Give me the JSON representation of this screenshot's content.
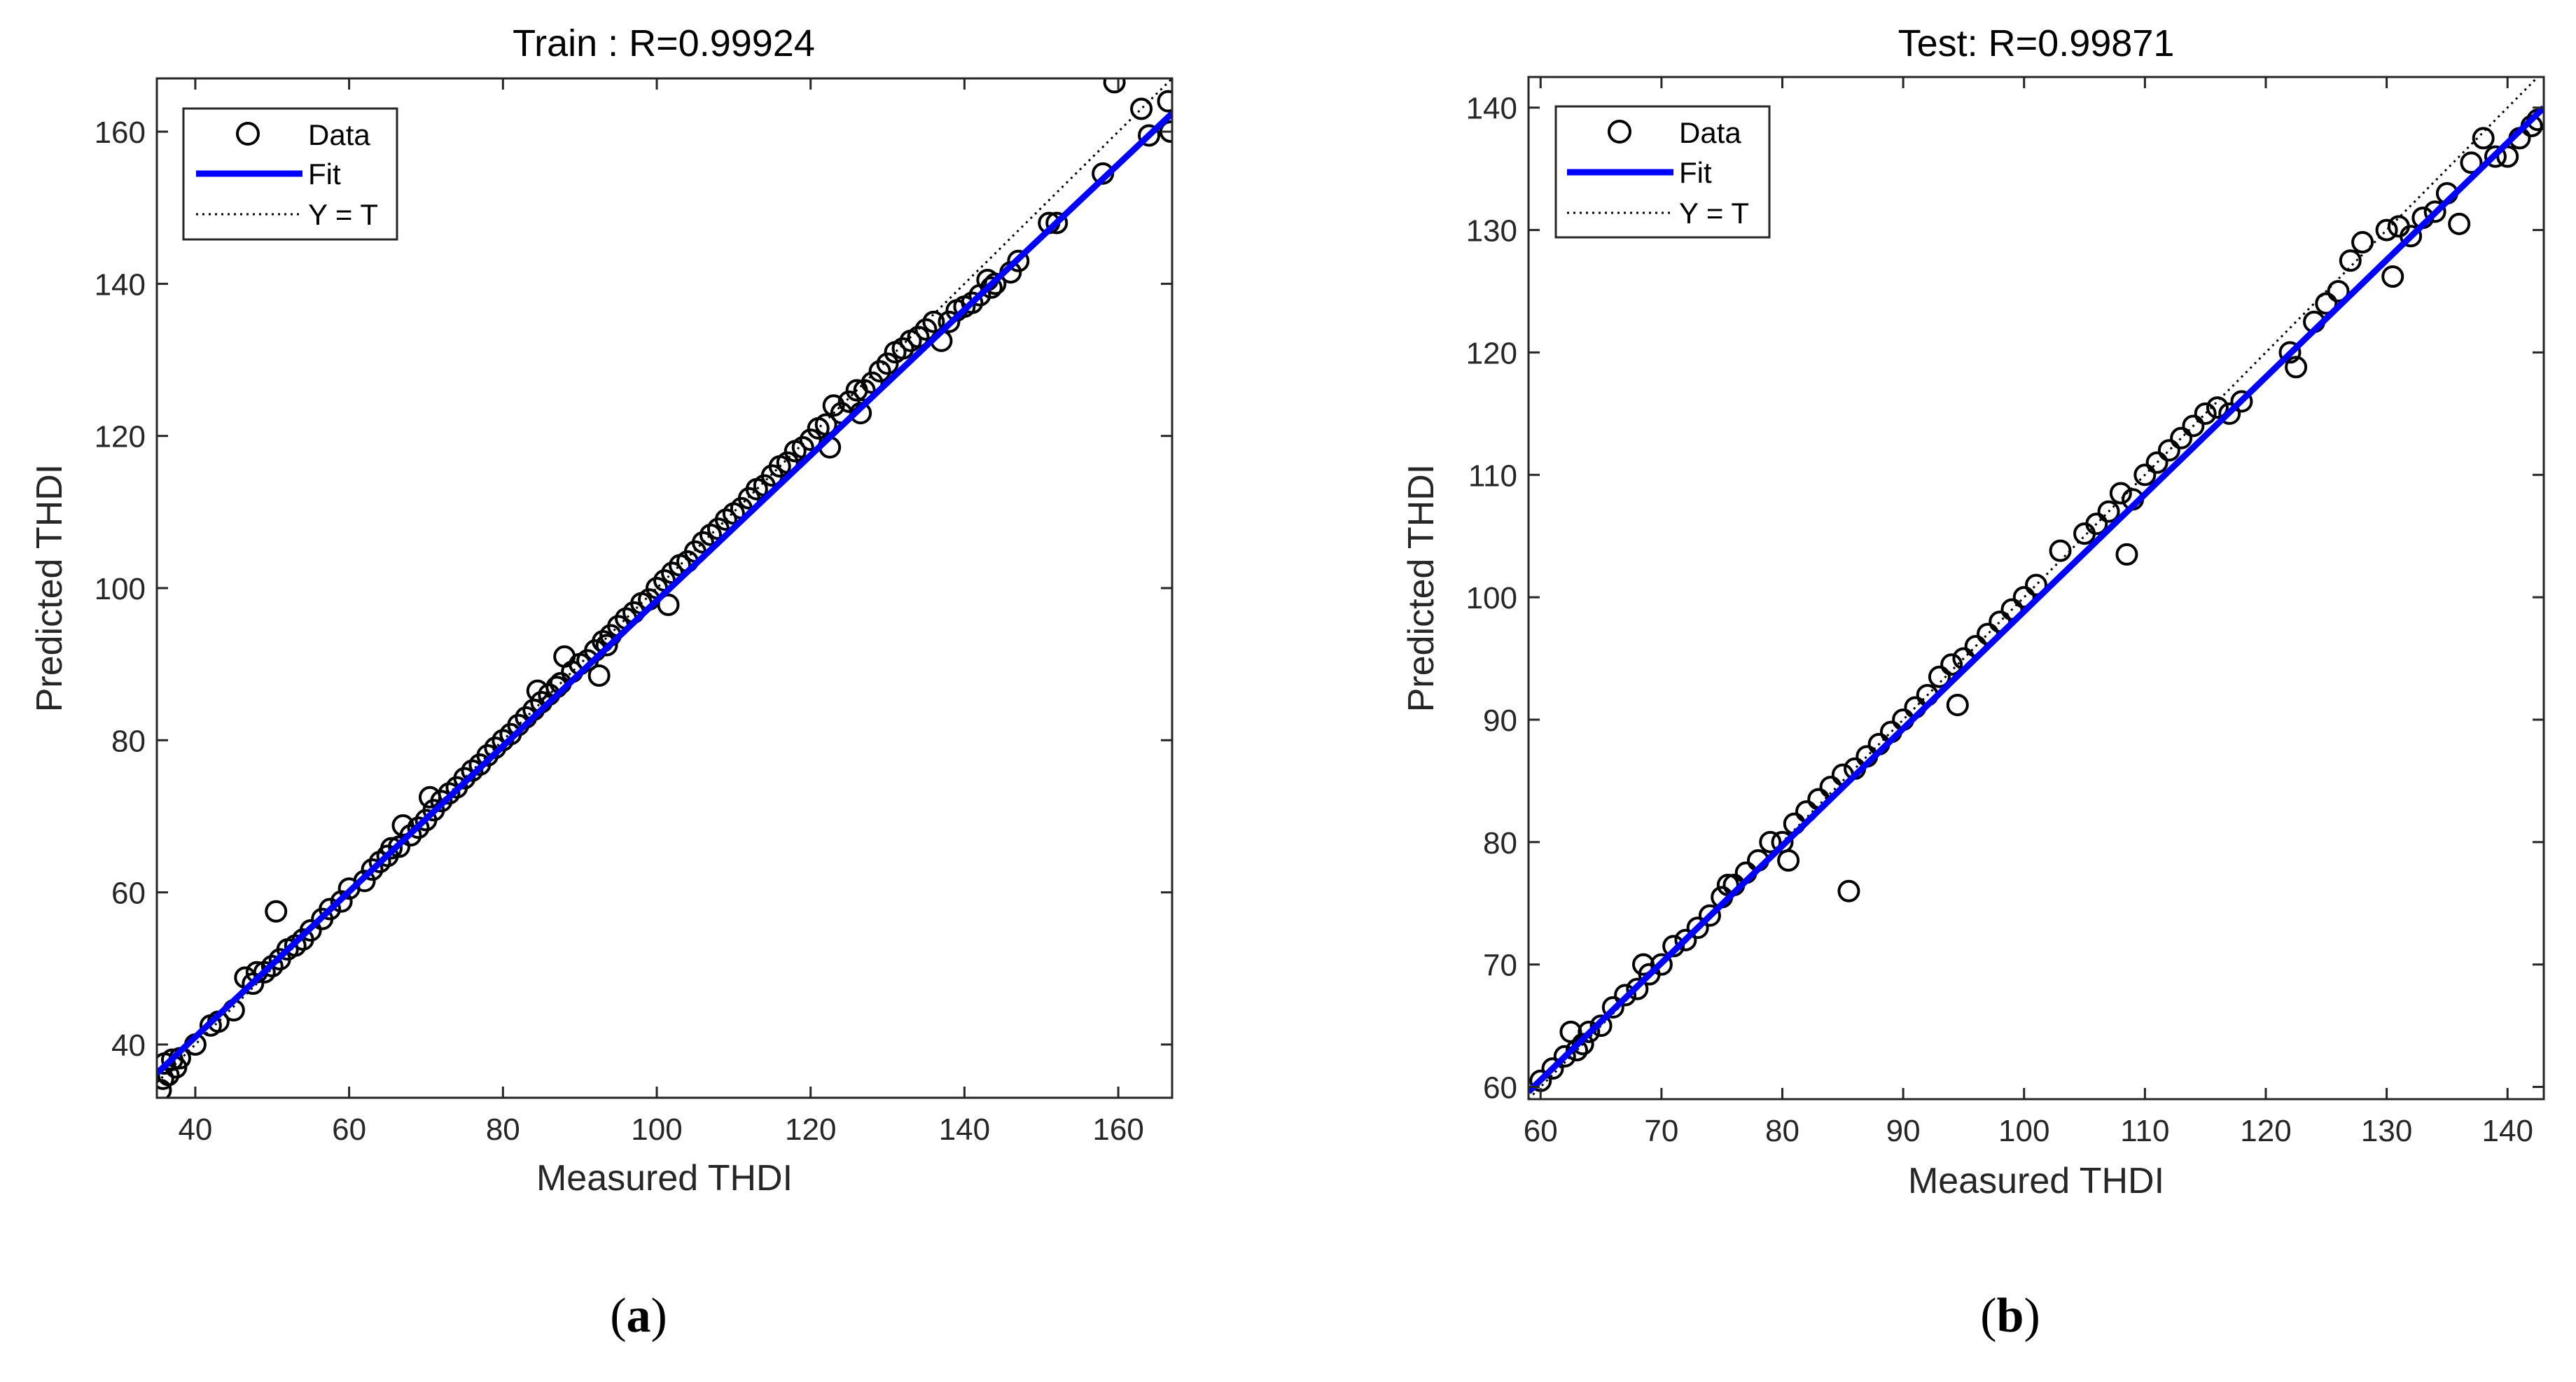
{
  "colors": {
    "fit_line": "#0000ff",
    "marker": "#000000",
    "axes": "#262626",
    "background": "#ffffff"
  },
  "captions": [
    {
      "open": "(",
      "letter": "a",
      "close": ")"
    },
    {
      "open": "(",
      "letter": "b",
      "close": ")"
    }
  ],
  "chart_data": [
    {
      "id": "train",
      "type": "scatter",
      "title": "Train : R=0.99924",
      "xlabel": "Measured THDI",
      "ylabel": "Predicted THDI",
      "xlim": [
        35,
        167
      ],
      "ylim": [
        33,
        167
      ],
      "xticks": [
        40,
        60,
        80,
        100,
        120,
        140,
        160
      ],
      "yticks": [
        40,
        60,
        80,
        100,
        120,
        140,
        160
      ],
      "grid": false,
      "legend_position": "top-left",
      "legend": [
        {
          "label": "Data",
          "kind": "marker"
        },
        {
          "label": "Fit",
          "kind": "fit"
        },
        {
          "label": "Y = T",
          "kind": "identity"
        }
      ],
      "fit": {
        "x": [
          35,
          167
        ],
        "y": [
          36.2,
          162.4
        ]
      },
      "identity": {
        "x": [
          35,
          167
        ],
        "y": [
          35,
          167
        ]
      },
      "series": [
        {
          "name": "Data",
          "x": [
            35.5,
            35.8,
            36,
            36.5,
            37,
            37.5,
            38,
            40,
            42,
            43,
            45,
            46.5,
            47.5,
            48,
            49,
            50,
            50.5,
            51,
            52,
            53,
            54,
            55,
            56.5,
            57.5,
            59,
            60,
            62,
            63,
            64,
            65,
            65.5,
            66.5,
            67,
            68,
            69,
            70,
            70.5,
            71,
            72,
            73,
            74,
            75,
            76,
            77,
            78,
            79,
            80,
            81,
            82,
            83,
            84,
            84.5,
            85,
            86,
            87,
            87.5,
            88,
            89,
            90,
            91,
            92,
            92.5,
            93,
            93.5,
            94,
            95,
            96,
            97,
            98,
            99,
            100,
            101,
            101.5,
            102,
            103,
            104,
            105,
            106,
            107,
            108,
            109,
            110,
            111,
            112,
            113,
            114,
            115,
            116,
            117,
            118,
            119,
            120,
            121,
            122,
            122.5,
            123,
            124,
            125,
            126,
            126.5,
            127,
            128,
            129,
            130,
            131,
            132,
            133,
            134,
            135,
            136,
            137,
            138,
            139,
            140,
            141,
            142,
            143,
            143.5,
            144,
            146,
            147,
            151,
            152,
            158,
            159.5,
            163,
            164,
            166.5,
            166.8
          ],
          "y": [
            34,
            35.5,
            37.5,
            36,
            38,
            37,
            38.2,
            40,
            42.5,
            43,
            44.5,
            48.8,
            48,
            49.5,
            49.5,
            50.3,
            57.5,
            51.2,
            52.5,
            53,
            53.8,
            55,
            56.5,
            57.8,
            58.8,
            60.5,
            61.5,
            63,
            64,
            64.8,
            65.8,
            66,
            68.8,
            67.5,
            68.5,
            69.5,
            72.5,
            70.8,
            72,
            73,
            73.8,
            75,
            76,
            76.8,
            78,
            79,
            80,
            80.8,
            82,
            83,
            84,
            86.5,
            85,
            86,
            87,
            87.5,
            91,
            89,
            90,
            90.5,
            91.8,
            88.5,
            93,
            92.5,
            93.8,
            95,
            96,
            96.8,
            98,
            98.5,
            100,
            101,
            97.8,
            102,
            103,
            103.5,
            104.8,
            106,
            107,
            107.8,
            109,
            109.8,
            110.5,
            111.8,
            113,
            113.5,
            114.8,
            116,
            116.5,
            118,
            118.5,
            119.5,
            121,
            121.5,
            118.5,
            124,
            123,
            124.5,
            126,
            123,
            126,
            127,
            128.5,
            129.5,
            131,
            131.5,
            132.5,
            133,
            134,
            135,
            132.5,
            135,
            136.5,
            137,
            137.5,
            138.5,
            140.5,
            139.5,
            140,
            141.5,
            143,
            148,
            148,
            154.5,
            166.5,
            163,
            159.5,
            164,
            160
          ]
        }
      ]
    },
    {
      "id": "test",
      "type": "scatter",
      "title": "Test: R=0.99871",
      "xlabel": "Measured THDI",
      "ylabel": "Predicted THDI",
      "xlim": [
        59,
        143
      ],
      "ylim": [
        59,
        142.5
      ],
      "xticks": [
        60,
        70,
        80,
        90,
        100,
        110,
        120,
        130,
        140
      ],
      "yticks": [
        60,
        70,
        80,
        90,
        100,
        110,
        120,
        130,
        140
      ],
      "grid": false,
      "legend_position": "top-left",
      "legend": [
        {
          "label": "Data",
          "kind": "marker"
        },
        {
          "label": "Fit",
          "kind": "fit"
        },
        {
          "label": "Y = T",
          "kind": "identity"
        }
      ],
      "fit": {
        "x": [
          59,
          143
        ],
        "y": [
          59.6,
          140
        ]
      },
      "identity": {
        "x": [
          59,
          143
        ],
        "y": [
          59,
          143
        ]
      },
      "series": [
        {
          "name": "Data",
          "x": [
            60,
            61,
            62,
            62.5,
            63,
            63.5,
            64,
            65,
            66,
            67,
            68,
            68.5,
            69,
            70,
            71,
            72,
            73,
            74,
            75,
            75.5,
            76,
            77,
            78,
            79,
            80,
            80.5,
            81,
            82,
            83,
            84,
            85,
            85.5,
            86,
            87,
            88,
            89,
            90,
            91,
            92,
            93,
            94,
            94.5,
            95,
            96,
            97,
            98,
            99,
            100,
            101,
            103,
            105,
            106,
            107,
            108,
            108.5,
            109,
            110,
            111,
            112,
            113,
            114,
            115,
            116,
            117,
            118,
            122,
            122.5,
            124,
            125,
            126,
            127,
            128,
            130,
            130.5,
            131,
            132,
            133,
            134,
            135,
            136,
            137,
            138,
            139,
            140,
            141,
            142,
            142.5
          ],
          "y": [
            60.5,
            61.5,
            62.5,
            64.5,
            63,
            63.5,
            64.5,
            65,
            66.5,
            67.5,
            68,
            70,
            69.2,
            70,
            71.5,
            72,
            73,
            74,
            75.5,
            76.5,
            76.5,
            77.5,
            78.5,
            80,
            80,
            78.5,
            81.5,
            82.5,
            83.5,
            84.5,
            85.5,
            76,
            86,
            87,
            88,
            89,
            90,
            91,
            92,
            93.5,
            94.5,
            91.2,
            95,
            96,
            97,
            98,
            99,
            100,
            101,
            103.8,
            105.2,
            106,
            107,
            108.5,
            103.5,
            108,
            110,
            111,
            112,
            113,
            114,
            115,
            115.5,
            115,
            116,
            120,
            118.8,
            122.5,
            124,
            125,
            127.5,
            129,
            130,
            126.2,
            130.3,
            129.5,
            131,
            131.5,
            133,
            130.5,
            135.5,
            137.5,
            136,
            136,
            137.5,
            138.5,
            139
          ]
        }
      ]
    }
  ]
}
